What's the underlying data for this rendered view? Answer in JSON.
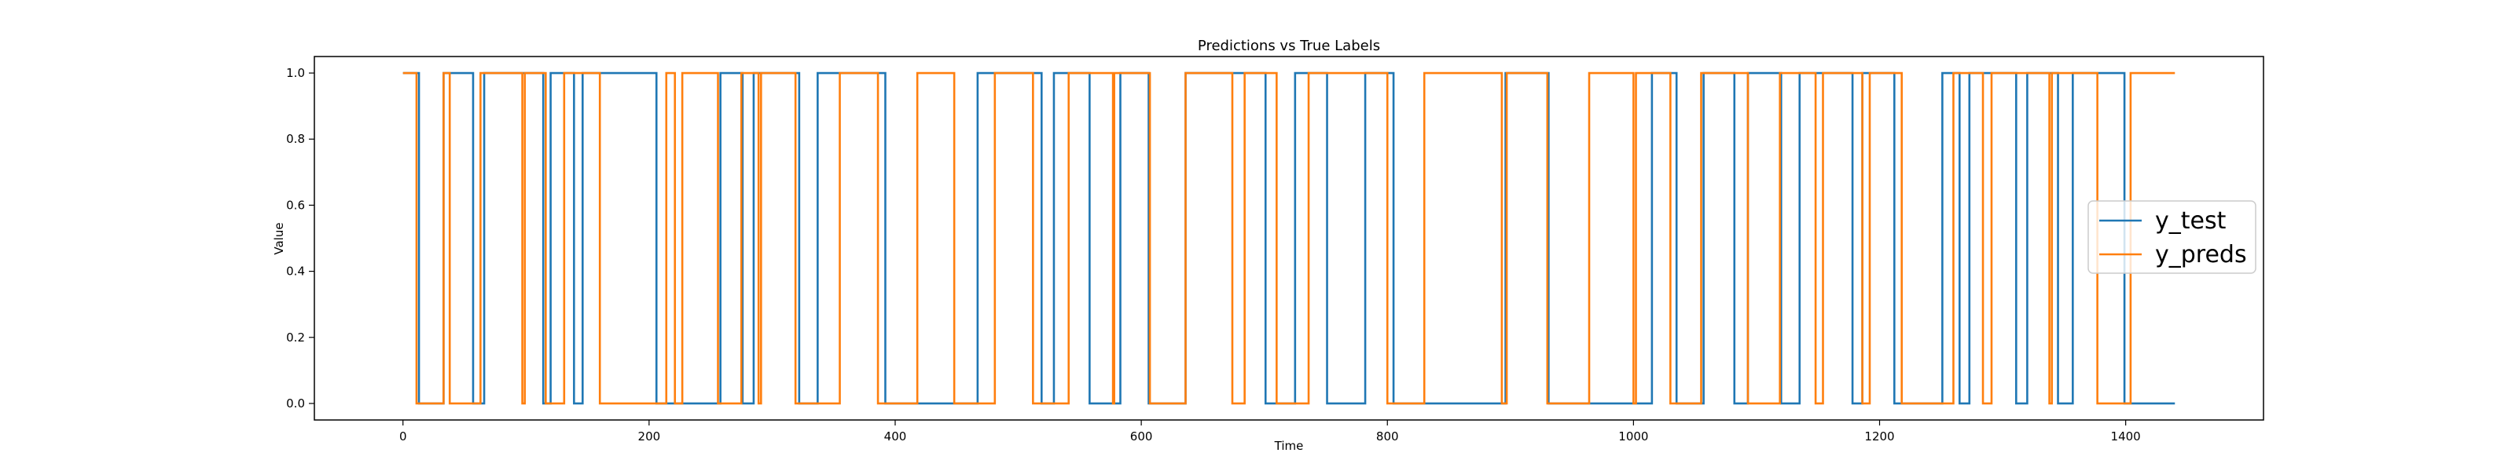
{
  "chart_data": {
    "type": "line",
    "title": "Predictions vs True Labels",
    "xlabel": "Time",
    "ylabel": "Value",
    "xlim": [
      -72,
      1512
    ],
    "ylim": [
      -0.05,
      1.05
    ],
    "xticks": [
      0,
      200,
      400,
      600,
      800,
      1000,
      1200,
      1400
    ],
    "yticks": [
      0.0,
      0.2,
      0.4,
      0.6,
      0.8,
      1.0
    ],
    "ytick_labels": [
      "0.0",
      "0.2",
      "0.4",
      "0.6",
      "0.8",
      "1.0"
    ],
    "legend_position": "center-right",
    "grid": false,
    "series": [
      {
        "name": "y_test",
        "color": "#1f77b4",
        "segments": [
          [
            0,
            1
          ],
          [
            13,
            0
          ],
          [
            33,
            1
          ],
          [
            57,
            0
          ],
          [
            66,
            1
          ],
          [
            114,
            0
          ],
          [
            120,
            1
          ],
          [
            139,
            0
          ],
          [
            146,
            1
          ],
          [
            206,
            0
          ],
          [
            258,
            1
          ],
          [
            276,
            0
          ],
          [
            285,
            1
          ],
          [
            322,
            0
          ],
          [
            337,
            1
          ],
          [
            392,
            0
          ],
          [
            467,
            1
          ],
          [
            519,
            0
          ],
          [
            529,
            1
          ],
          [
            558,
            0
          ],
          [
            583,
            1
          ],
          [
            606,
            0
          ],
          [
            636,
            1
          ],
          [
            701,
            0
          ],
          [
            725,
            1
          ],
          [
            751,
            0
          ],
          [
            782,
            1
          ],
          [
            805,
            0
          ],
          [
            896,
            1
          ],
          [
            931,
            0
          ],
          [
            1015,
            1
          ],
          [
            1035,
            0
          ],
          [
            1057,
            1
          ],
          [
            1082,
            0
          ],
          [
            1093,
            1
          ],
          [
            1120,
            0
          ],
          [
            1135,
            1
          ],
          [
            1178,
            0
          ],
          [
            1186,
            1
          ],
          [
            1212,
            0
          ],
          [
            1251,
            1
          ],
          [
            1265,
            0
          ],
          [
            1273,
            1
          ],
          [
            1311,
            0
          ],
          [
            1320,
            1
          ],
          [
            1345,
            0
          ],
          [
            1357,
            1
          ],
          [
            1399,
            0
          ],
          [
            1440,
            0
          ]
        ]
      },
      {
        "name": "y_preds",
        "color": "#ff7f0e",
        "segments": [
          [
            0,
            1
          ],
          [
            11,
            0
          ],
          [
            33,
            1
          ],
          [
            38,
            0
          ],
          [
            63,
            1
          ],
          [
            97,
            0
          ],
          [
            99,
            1
          ],
          [
            116,
            0
          ],
          [
            131,
            1
          ],
          [
            160,
            0
          ],
          [
            214,
            1
          ],
          [
            221,
            0
          ],
          [
            227,
            1
          ],
          [
            256,
            0
          ],
          [
            275,
            1
          ],
          [
            289,
            0
          ],
          [
            291,
            1
          ],
          [
            319,
            0
          ],
          [
            355,
            1
          ],
          [
            386,
            0
          ],
          [
            418,
            1
          ],
          [
            448,
            0
          ],
          [
            481,
            1
          ],
          [
            512,
            0
          ],
          [
            541,
            1
          ],
          [
            577,
            0
          ],
          [
            578,
            1
          ],
          [
            607,
            0
          ],
          [
            636,
            1
          ],
          [
            674,
            0
          ],
          [
            684,
            1
          ],
          [
            710,
            0
          ],
          [
            736,
            1
          ],
          [
            800,
            0
          ],
          [
            830,
            1
          ],
          [
            893,
            0
          ],
          [
            897,
            1
          ],
          [
            930,
            0
          ],
          [
            964,
            1
          ],
          [
            1000,
            0
          ],
          [
            1002,
            1
          ],
          [
            1030,
            0
          ],
          [
            1055,
            1
          ],
          [
            1093,
            0
          ],
          [
            1119,
            1
          ],
          [
            1148,
            0
          ],
          [
            1154,
            1
          ],
          [
            1186,
            0
          ],
          [
            1192,
            1
          ],
          [
            1218,
            0
          ],
          [
            1260,
            1
          ],
          [
            1284,
            0
          ],
          [
            1291,
            1
          ],
          [
            1338,
            0
          ],
          [
            1340,
            1
          ],
          [
            1377,
            0
          ],
          [
            1404,
            1
          ],
          [
            1440,
            1
          ]
        ]
      }
    ]
  }
}
